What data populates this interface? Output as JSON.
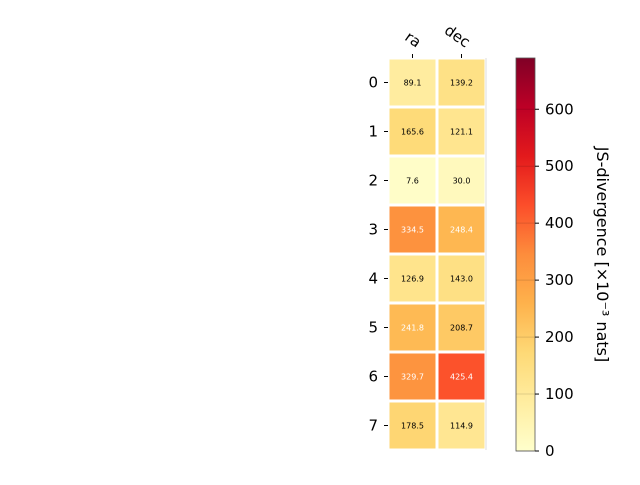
{
  "chart_data": {
    "type": "heatmap",
    "columns": [
      "ra",
      "dec"
    ],
    "rows": [
      "0",
      "1",
      "2",
      "3",
      "4",
      "5",
      "6",
      "7"
    ],
    "values": [
      [
        89.1,
        139.2
      ],
      [
        165.6,
        121.1
      ],
      [
        7.6,
        30.0
      ],
      [
        334.5,
        248.4
      ],
      [
        126.9,
        143.0
      ],
      [
        241.8,
        208.7
      ],
      [
        329.7,
        425.4
      ],
      [
        178.5,
        114.9
      ]
    ],
    "colorbar": {
      "label": "JS-divergence [×10⁻³ nats]",
      "ticks": [
        0,
        100,
        200,
        300,
        400,
        500,
        600
      ],
      "range": [
        0,
        690
      ],
      "colormap": "YlOrRd"
    }
  }
}
